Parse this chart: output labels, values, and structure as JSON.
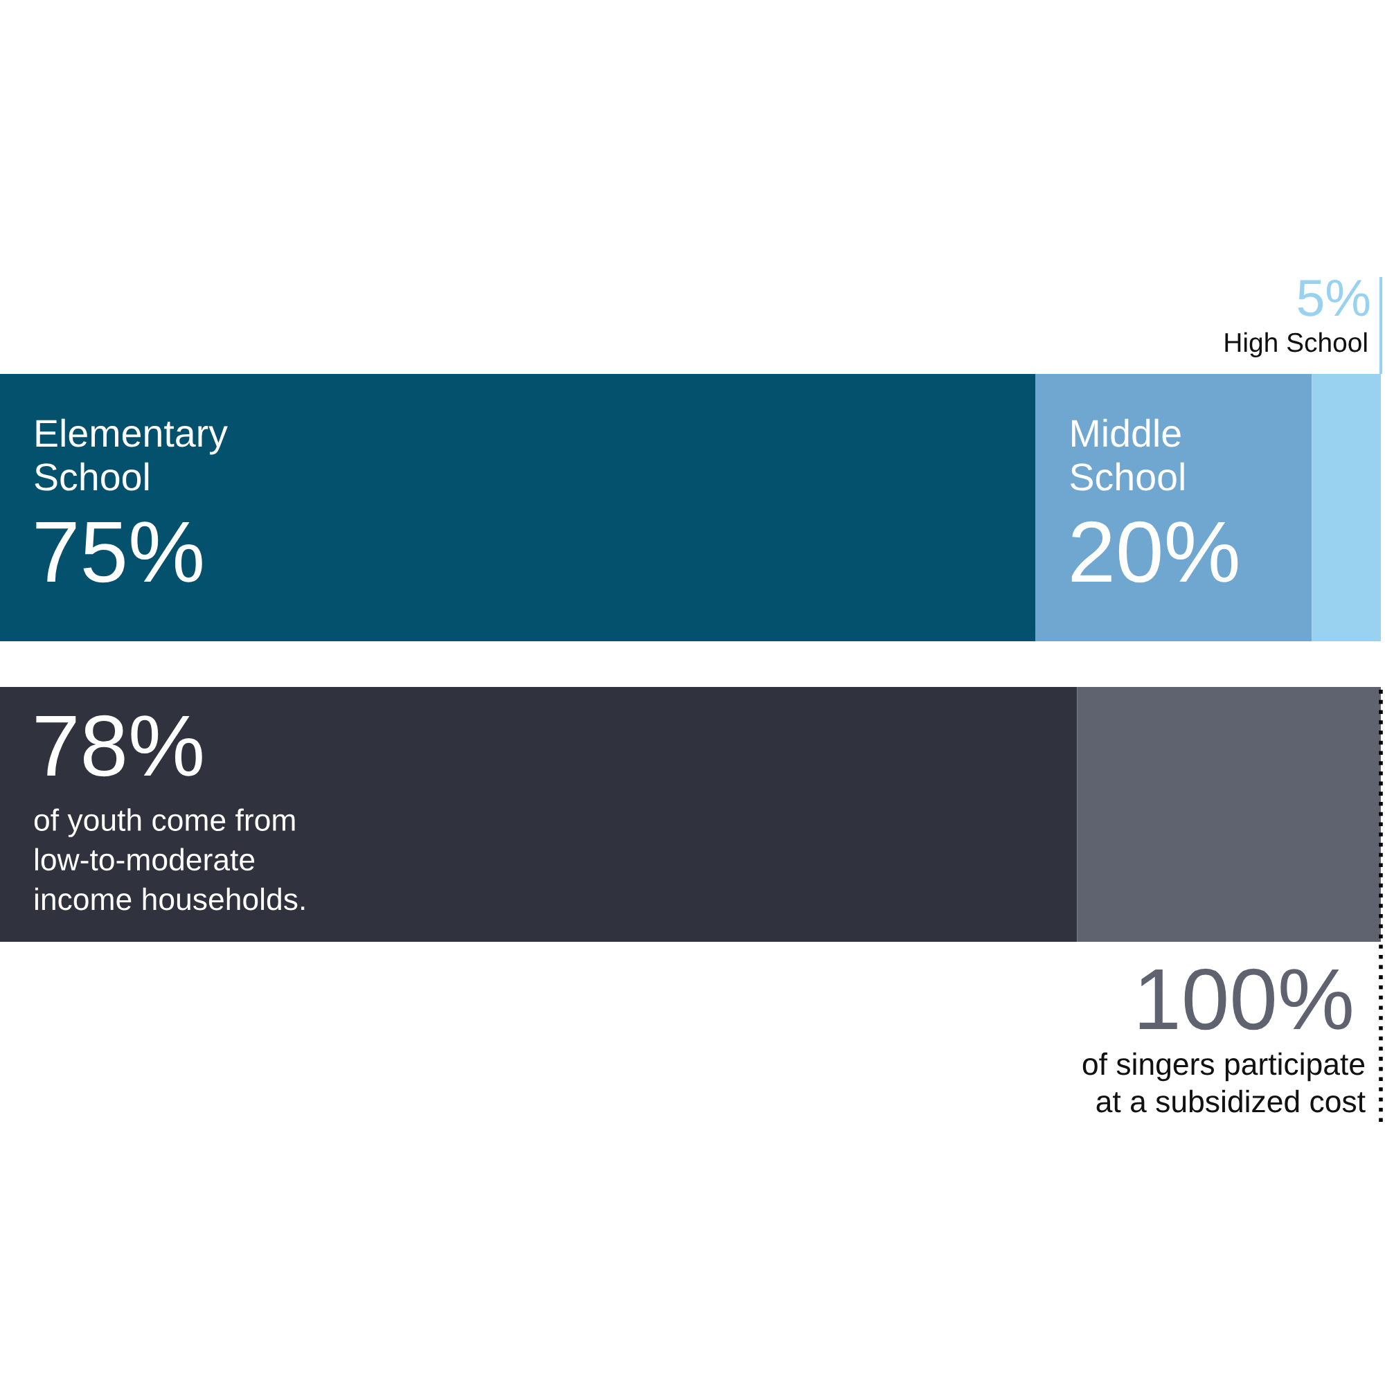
{
  "chart_data": [
    {
      "type": "bar",
      "orientation": "horizontal",
      "stacked": true,
      "categories": [
        null
      ],
      "xlim": [
        0,
        100
      ],
      "tick_labels": false,
      "series": [
        {
          "name": "Elementary\nSchool",
          "color": "#03516d",
          "values": [
            75
          ],
          "value_labels": [
            "75%"
          ]
        },
        {
          "name": "Middle\nSchool",
          "color": "#6fa7d0",
          "values": [
            20
          ],
          "value_labels": [
            "20%"
          ]
        },
        {
          "name": "High School",
          "color": "#99d1f0",
          "values": [
            5
          ],
          "value_labels": [
            "5%"
          ]
        }
      ]
    },
    {
      "type": "bar",
      "orientation": "horizontal",
      "stacked": true,
      "categories": [
        null
      ],
      "xlim": [
        0,
        100
      ],
      "tick_labels": false,
      "series": [
        {
          "color": "#30333e",
          "values": [
            78
          ],
          "value_labels": [
            "78%"
          ]
        },
        {
          "color": "#5f6370",
          "values": [
            22
          ]
        }
      ],
      "ref_lines": [
        {
          "axis": "x",
          "value": 100,
          "label": "100%",
          "color": "#000000",
          "line_style": "dotted"
        }
      ],
      "annotations": [
        "of youth come from\nlow-to-moderate\nincome households.",
        "of singers participate\nat a subsidized cost"
      ]
    }
  ]
}
